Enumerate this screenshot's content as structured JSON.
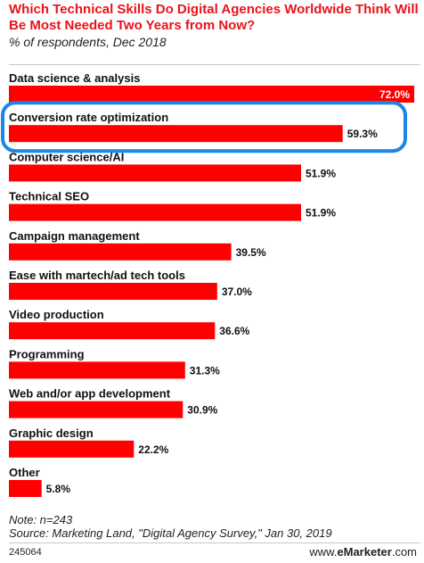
{
  "header": {
    "title": "Which Technical Skills Do Digital Agencies Worldwide Think Will Be Most Needed Two Years from Now?",
    "subtitle": "% of respondents, Dec 2018"
  },
  "footer": {
    "note": "Note: n=243",
    "source": "Source: Marketing Land, \"Digital Agency Survey,\" Jan 30, 2019",
    "chart_id": "245064",
    "brand_prefix": "www.",
    "brand_name": "eMarketer",
    "brand_suffix": ".com"
  },
  "colors": {
    "bar": "#ff0000",
    "title": "#e8131b",
    "highlight": "#1a87e6"
  },
  "highlight_category": "Conversion rate optimization",
  "chart_data": {
    "type": "bar",
    "orientation": "horizontal",
    "categories": [
      "Data science & analysis",
      "Conversion rate optimization",
      "Computer science/AI",
      "Technical SEO",
      "Campaign management",
      "Ease with martech/ad tech tools",
      "Video production",
      "Programming",
      "Web and/or app development",
      "Graphic design",
      "Other"
    ],
    "values": [
      72.0,
      59.3,
      51.9,
      51.9,
      39.5,
      37.0,
      36.6,
      31.3,
      30.9,
      22.2,
      5.8
    ],
    "value_labels": [
      "72.0%",
      "59.3%",
      "51.9%",
      "51.9%",
      "39.5%",
      "37.0%",
      "36.6%",
      "31.3%",
      "30.9%",
      "22.2%",
      "5.8%"
    ],
    "xlim": [
      0,
      72.0
    ],
    "grid": false,
    "legend": "none"
  }
}
